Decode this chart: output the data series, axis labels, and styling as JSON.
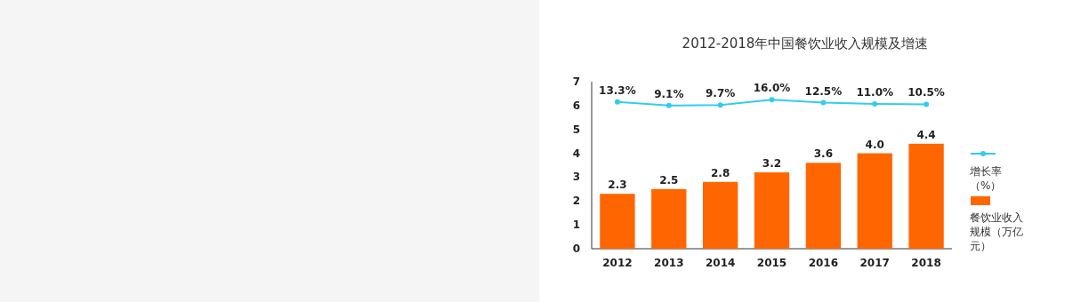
{
  "chart_data": {
    "type": "bar",
    "title": "2012-2018年中国餐饮业收入规模及增速",
    "categories": [
      "2012",
      "2013",
      "2014",
      "2015",
      "2016",
      "2017",
      "2018"
    ],
    "series": [
      {
        "name": "餐饮业收入规模（万亿元）",
        "color": "#ff6600",
        "values": [
          2.3,
          2.5,
          2.8,
          3.2,
          3.6,
          4.0,
          4.4
        ],
        "value_labels": [
          "2.3",
          "2.5",
          "2.8",
          "3.2",
          "3.6",
          "4.0",
          "4.4"
        ]
      },
      {
        "name": "增长率（%）",
        "type": "line",
        "axis": "y2",
        "color": "#33ccee",
        "values": [
          13.3,
          9.1,
          9.7,
          16.0,
          12.5,
          11.0,
          10.5
        ],
        "value_labels": [
          "13.3%",
          "9.1%",
          "9.7%",
          "16.0%",
          "12.5%",
          "11.0%",
          "10.5%"
        ]
      }
    ],
    "ylim": [
      0,
      7
    ],
    "yticks": [
      0,
      1,
      2,
      3,
      4,
      5,
      6,
      7
    ],
    "marker": "circle",
    "legend": "right",
    "grid": false
  }
}
